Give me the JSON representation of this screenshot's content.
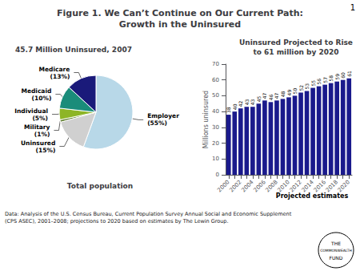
{
  "title": "Figure 1. We Can’t Continue on Our Current Path:\nGrowth in the Uninsured",
  "annotations": [
    "1",
    "Data: Analysis of the U.S. Census Bureau, Current Population Survey Annual Social and Economic Supplement\n(CPS ASEC), 2001–2008; projections to 2020 based on estimates by The Lewin Group.",
    "THE",
    "COMMONWEALTH",
    "FUND"
  ],
  "chart_data": [
    {
      "type": "pie",
      "title": "45.7 Million Uninsured, 2007",
      "subtitle": "Total population",
      "categories": [
        "Employer",
        "Uninsured",
        "Military",
        "Individual",
        "Medicaid",
        "Medicare"
      ],
      "values": [
        55,
        15,
        1,
        5,
        10,
        13
      ],
      "value_labels": [
        "(55%)",
        "(15%)",
        "(1%)",
        "(5%)",
        "(10%)",
        "(13%)"
      ],
      "colors": [
        "#b8d8e8",
        "#d0d0d0",
        "#5a7a28",
        "#8db526",
        "#1a8c7a",
        "#1a1a7a"
      ]
    },
    {
      "type": "bar",
      "title": "Uninsured Projected to Rise\nto 61 million by 2020",
      "ylabel": "Millions uninsured",
      "categories": [
        "2000",
        null,
        "2002",
        null,
        "2004",
        null,
        "2006",
        null,
        "2008",
        null,
        "2010",
        null,
        "2012",
        null,
        "2014",
        null,
        "2016",
        null,
        "2018",
        null,
        "2020"
      ],
      "values": [
        38,
        40,
        42,
        43,
        43,
        45,
        47,
        46,
        47,
        48,
        49,
        50,
        52,
        53,
        55,
        56,
        57,
        58,
        59,
        60,
        61
      ],
      "color": "#1a1a8c",
      "ylim": [
        0,
        70
      ],
      "yticks": [
        0,
        10,
        20,
        30,
        40,
        50,
        60,
        70
      ],
      "grid": false,
      "data_labels": true,
      "annotations": [
        "Projected estimates"
      ]
    }
  ]
}
